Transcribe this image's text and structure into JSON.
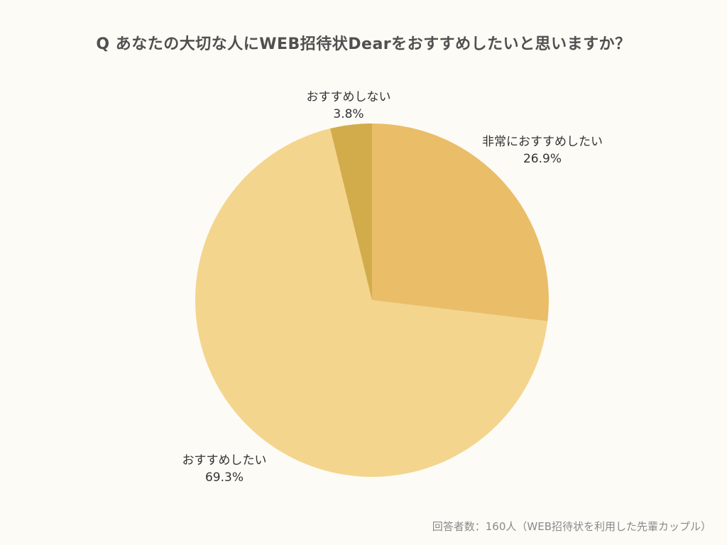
{
  "title": "Q あなたの大切な人にWEB招待状Dearをおすすめしたいと思いますか？",
  "note": "回答者数：160人（WEB招待状を利用した先輩カップル）",
  "chart_data": {
    "type": "pie",
    "title": "Q あなたの大切な人にWEB招待状Dearをおすすめしたいと思いますか？",
    "start_angle_deg": 0,
    "direction": "clockwise",
    "slices": [
      {
        "label": "非常におすすめしたい",
        "value": 26.9,
        "value_label": "26.9%",
        "color": "#eabd69"
      },
      {
        "label": "おすすめしたい",
        "value": 69.3,
        "value_label": "69.3%",
        "color": "#f3d58d"
      },
      {
        "label": "おすすめしない",
        "value": 3.8,
        "value_label": "3.8%",
        "color": "#d2ab4b"
      }
    ]
  }
}
